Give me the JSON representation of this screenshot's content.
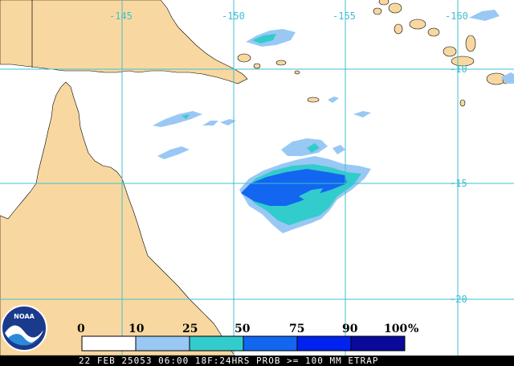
{
  "map": {
    "longitude_labels": [
      "-145",
      "-150",
      "-155",
      "-160"
    ],
    "latitude_labels": [
      "-10",
      "-15",
      "-20"
    ]
  },
  "legend": {
    "labels": [
      "0",
      "10",
      "25",
      "50",
      "75",
      "90",
      "100"
    ],
    "unit": "%",
    "colors": [
      "#ffffff",
      "#99c8f4",
      "#33cccc",
      "#1266f0",
      "#0022ee",
      "#0a0a9a"
    ]
  },
  "colors": {
    "land": "#f8d8a0",
    "grid": "#3fbfd0",
    "background": "#ffffff"
  },
  "logo": {
    "text": "NOAA"
  },
  "status_bar": {
    "text": "22 FEB 25053 06:00 18F:24HRS PROB >= 100 MM ETRAP"
  }
}
